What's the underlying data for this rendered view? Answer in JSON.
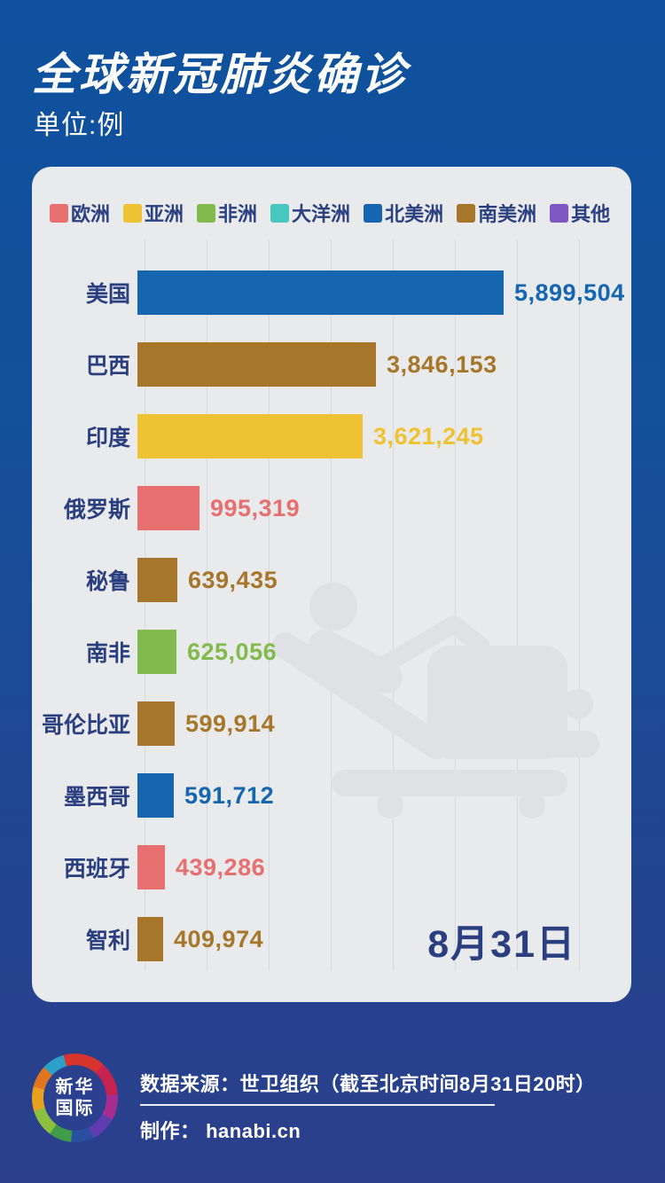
{
  "header": {
    "title": "全球新冠肺炎确诊",
    "unit_label": "单位:例"
  },
  "legend": [
    {
      "label": "欧洲",
      "color": "#e76f70"
    },
    {
      "label": "亚洲",
      "color": "#eec232"
    },
    {
      "label": "非洲",
      "color": "#82bb4d"
    },
    {
      "label": "大洋洲",
      "color": "#46c8c0"
    },
    {
      "label": "北美洲",
      "color": "#1566ae"
    },
    {
      "label": "南美洲",
      "color": "#a6762a"
    },
    {
      "label": "其他",
      "color": "#7e57c5"
    }
  ],
  "chart_data": {
    "type": "bar",
    "orientation": "horizontal",
    "title": "全球新冠肺炎确诊",
    "unit": "例",
    "categories": [
      "美国",
      "巴西",
      "印度",
      "俄罗斯",
      "秘鲁",
      "南非",
      "哥伦比亚",
      "墨西哥",
      "西班牙",
      "智利"
    ],
    "values": [
      5899504,
      3846153,
      3621245,
      995319,
      639435,
      625056,
      599914,
      591712,
      439286,
      409974
    ],
    "value_labels": [
      "5,899,504",
      "3,846,153",
      "3,621,245",
      "995,319",
      "639,435",
      "625,056",
      "599,914",
      "591,712",
      "439,286",
      "409,974"
    ],
    "continents": [
      "北美洲",
      "南美洲",
      "亚洲",
      "欧洲",
      "南美洲",
      "非洲",
      "南美洲",
      "北美洲",
      "欧洲",
      "南美洲"
    ],
    "xlim": [
      0,
      5899504
    ],
    "grid": true,
    "grid_line_count": 8,
    "legend_position": "top",
    "date_label": "8月31日"
  },
  "watermark": {
    "name": "hospital-bed-icon",
    "color": "#e0e1e4"
  },
  "footer": {
    "logo_line1": "新华",
    "logo_line2": "国际",
    "source": "数据来源：世卫组织（截至北京时间8月31日20时）",
    "credit": "制作： hanabi.cn"
  },
  "colors": {
    "background_top": "#0f519f",
    "background_bottom": "#2b3f8c",
    "card": "#e9eaec",
    "grid_line": "#d7d8da",
    "label_text": "#2a3f7f",
    "title_text": "#ffffff"
  }
}
